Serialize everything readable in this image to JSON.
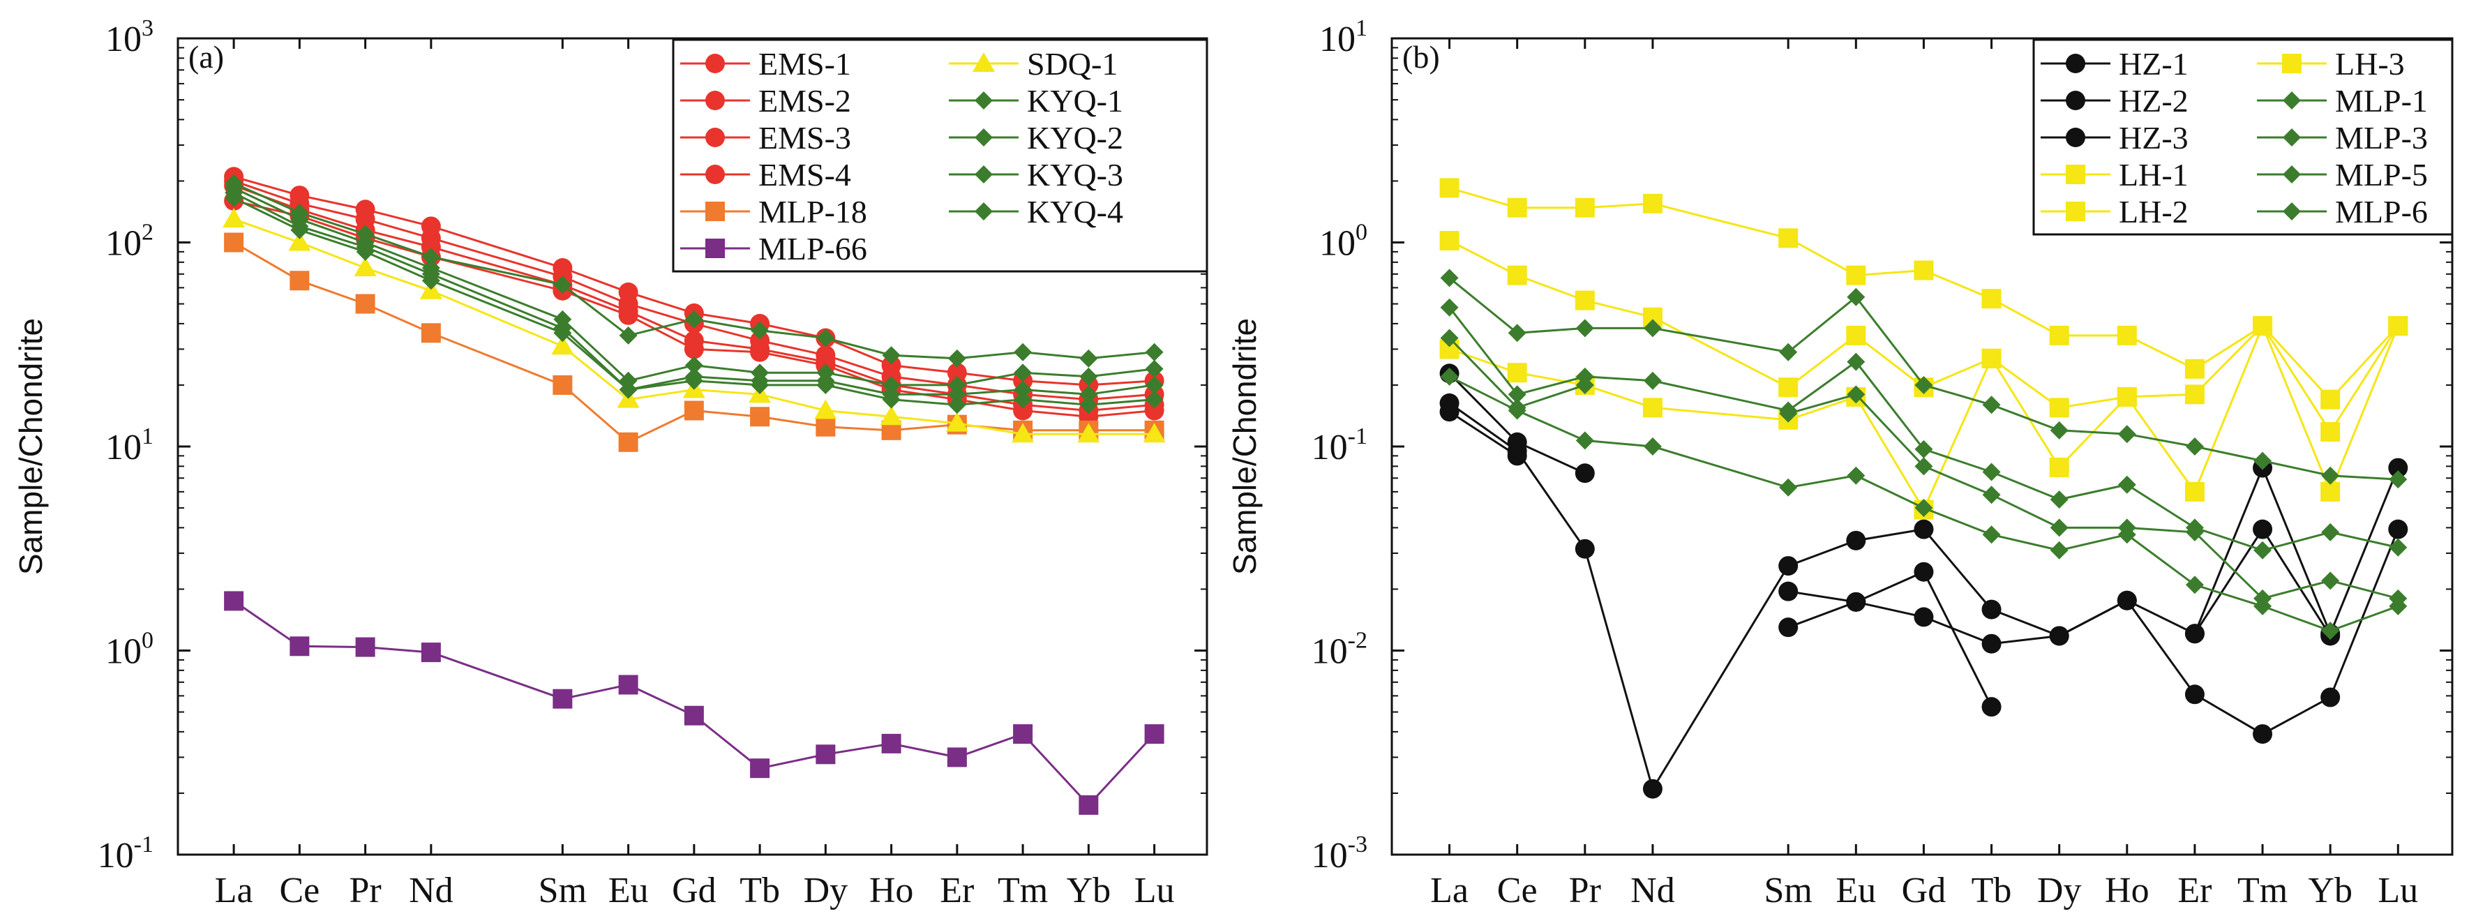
{
  "chart_data": [
    {
      "type": "line",
      "panel_label": "(a)",
      "ylabel": "Sample/Chondrite",
      "yscale": "log",
      "ylim": [
        0.1,
        1000
      ],
      "y_tick_exponents": [
        "-1",
        "0",
        "1",
        "2",
        "3"
      ],
      "categories": [
        "La",
        "Ce",
        "Pr",
        "Nd",
        "Sm",
        "Eu",
        "Gd",
        "Tb",
        "Dy",
        "Ho",
        "Er",
        "Tm",
        "Yb",
        "Lu"
      ],
      "element_positions": [
        1,
        2,
        3,
        4,
        6,
        7,
        8,
        9,
        10,
        11,
        12,
        13,
        14,
        15
      ],
      "legend_columns": 2,
      "series": [
        {
          "name": "EMS-1",
          "color": "#e8342c",
          "marker": "circle",
          "values": [
            210,
            170,
            145,
            120,
            75,
            57,
            45,
            40,
            34,
            25,
            23,
            21,
            20,
            21
          ]
        },
        {
          "name": "EMS-2",
          "color": "#e8342c",
          "marker": "circle",
          "values": [
            200,
            155,
            130,
            105,
            68,
            50,
            40,
            33,
            28,
            22,
            20,
            18,
            17,
            18
          ]
        },
        {
          "name": "EMS-3",
          "color": "#e8342c",
          "marker": "circle",
          "values": [
            190,
            145,
            115,
            95,
            62,
            46,
            33,
            30,
            26,
            20,
            18,
            16,
            15,
            16
          ]
        },
        {
          "name": "EMS-4",
          "color": "#e8342c",
          "marker": "circle",
          "values": [
            160,
            135,
            105,
            85,
            58,
            44,
            30,
            29,
            25,
            19,
            17,
            15,
            14,
            15
          ]
        },
        {
          "name": "MLP-18",
          "color": "#f07a2e",
          "marker": "square",
          "values": [
            100,
            65,
            50,
            36,
            20,
            10.5,
            15,
            14,
            12.5,
            12,
            12.8,
            12,
            12,
            12
          ]
        },
        {
          "name": "MLP-66",
          "color": "#7a2e86",
          "marker": "square",
          "values": [
            1.75,
            1.05,
            1.04,
            0.98,
            0.58,
            0.68,
            0.48,
            0.265,
            0.31,
            0.35,
            0.3,
            0.39,
            0.175,
            0.39
          ]
        },
        {
          "name": "SDQ-1",
          "color": "#f5e614",
          "marker": "triangle",
          "values": [
            130,
            100,
            75,
            58,
            31,
            17,
            19,
            18,
            15,
            14,
            13,
            11.5,
            11.5,
            11.5
          ]
        },
        {
          "name": "KYQ-1",
          "color": "#3b7d2c",
          "marker": "diamond",
          "values": [
            195,
            140,
            110,
            85,
            62,
            35,
            42,
            37,
            34,
            28,
            27,
            29,
            27,
            29
          ]
        },
        {
          "name": "KYQ-2",
          "color": "#3b7d2c",
          "marker": "diamond",
          "values": [
            185,
            130,
            100,
            75,
            42,
            21,
            25,
            23,
            23,
            20,
            20,
            23,
            22,
            24
          ]
        },
        {
          "name": "KYQ-3",
          "color": "#3b7d2c",
          "marker": "diamond",
          "values": [
            175,
            120,
            95,
            70,
            38,
            19,
            22,
            21,
            21,
            18,
            18,
            19,
            18,
            20
          ]
        },
        {
          "name": "KYQ-4",
          "color": "#3b7d2c",
          "marker": "diamond",
          "values": [
            165,
            115,
            90,
            65,
            36,
            19,
            21,
            20,
            20,
            17,
            16,
            17,
            16,
            17
          ]
        }
      ]
    },
    {
      "type": "line",
      "panel_label": "(b)",
      "ylabel": "Sample/Chondrite",
      "yscale": "log",
      "ylim": [
        0.001,
        10
      ],
      "y_tick_exponents": [
        "-3",
        "-2",
        "-1",
        "0",
        "1"
      ],
      "categories": [
        "La",
        "Ce",
        "Pr",
        "Nd",
        "Sm",
        "Eu",
        "Gd",
        "Tb",
        "Dy",
        "Ho",
        "Er",
        "Tm",
        "Yb",
        "Lu"
      ],
      "element_positions": [
        1,
        2,
        3,
        4,
        6,
        7,
        8,
        9,
        10,
        11,
        12,
        13,
        14,
        15
      ],
      "legend_columns": 2,
      "series": [
        {
          "name": "HZ-1",
          "color": "#111111",
          "marker": "circle",
          "values": [
            0.228,
            0.105,
            0.074,
            null,
            0.0195,
            0.0173,
            0.0146,
            0.0108,
            0.0118,
            0.0176,
            0.0121,
            0.0786,
            0.0121,
            0.0786
          ]
        },
        {
          "name": "HZ-2",
          "color": "#111111",
          "marker": "circle",
          "values": [
            0.163,
            0.095,
            0.0315,
            0.0021,
            0.026,
            0.0346,
            0.0393,
            0.0159,
            0.0118,
            0.0176,
            0.0061,
            0.0039,
            0.0059,
            0.0393
          ]
        },
        {
          "name": "HZ-3",
          "color": "#111111",
          "marker": "circle",
          "values": [
            0.148,
            0.09,
            null,
            null,
            0.013,
            0.0173,
            0.0243,
            0.0053,
            null,
            null,
            0.0121,
            0.0393,
            0.0118,
            null
          ]
        },
        {
          "name": "LH-1",
          "color": "#f5e614",
          "marker": "square",
          "values": [
            1.85,
            1.48,
            1.48,
            1.55,
            1.05,
            0.69,
            0.73,
            0.53,
            0.35,
            0.35,
            0.24,
            0.39,
            0.17,
            0.39
          ]
        },
        {
          "name": "LH-2",
          "color": "#f5e614",
          "marker": "square",
          "values": [
            1.02,
            0.69,
            0.52,
            0.43,
            0.195,
            0.35,
            0.195,
            0.27,
            0.155,
            0.175,
            0.18,
            0.39,
            0.118,
            0.39
          ]
        },
        {
          "name": "LH-3",
          "color": "#f5e614",
          "marker": "square",
          "values": [
            0.3,
            0.23,
            0.2,
            0.155,
            0.135,
            0.175,
            0.049,
            0.27,
            0.079,
            0.175,
            0.06,
            0.39,
            0.06,
            0.39
          ]
        },
        {
          "name": "MLP-1",
          "color": "#3b7d2c",
          "marker": "diamond",
          "values": [
            0.67,
            0.36,
            0.38,
            0.38,
            0.29,
            0.54,
            0.2,
            0.16,
            0.12,
            0.115,
            0.1,
            0.085,
            0.072,
            0.069
          ]
        },
        {
          "name": "MLP-3",
          "color": "#3b7d2c",
          "marker": "diamond",
          "values": [
            0.48,
            0.18,
            0.22,
            0.21,
            0.15,
            0.26,
            0.097,
            0.075,
            0.055,
            0.065,
            0.04,
            0.031,
            0.038,
            0.032
          ]
        },
        {
          "name": "MLP-5",
          "color": "#3b7d2c",
          "marker": "diamond",
          "values": [
            0.34,
            0.155,
            0.2,
            null,
            0.145,
            0.18,
            0.08,
            0.058,
            0.04,
            0.04,
            0.038,
            0.018,
            0.022,
            0.018
          ]
        },
        {
          "name": "MLP-6",
          "color": "#3b7d2c",
          "marker": "diamond",
          "values": [
            0.22,
            0.15,
            0.107,
            0.1,
            0.063,
            0.072,
            0.05,
            0.037,
            0.031,
            0.037,
            0.021,
            0.0165,
            0.0125,
            0.0165
          ]
        }
      ]
    }
  ]
}
